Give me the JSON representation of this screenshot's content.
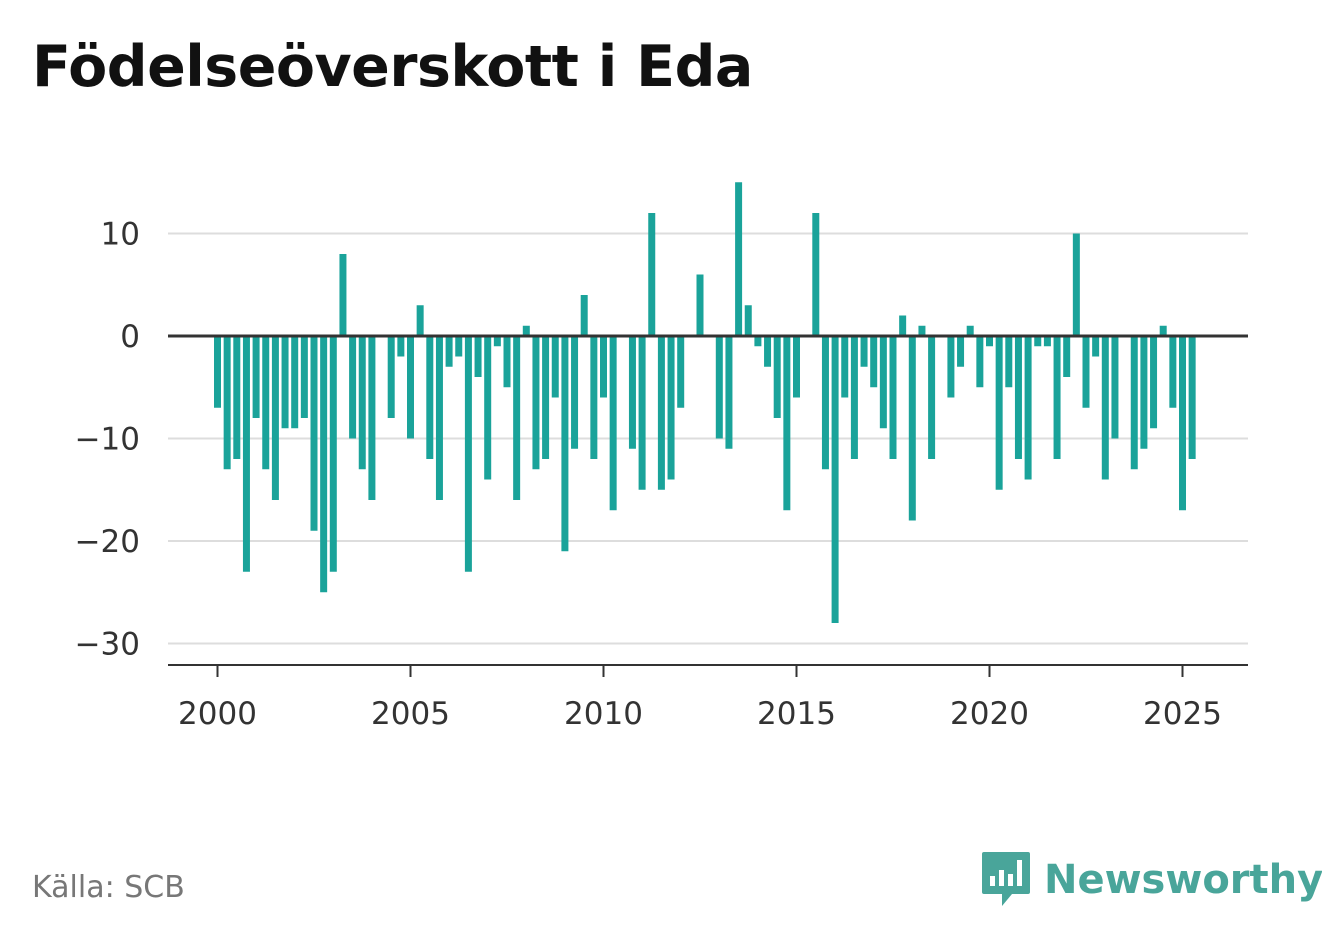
{
  "title": "Födelseöverskott i Eda",
  "source": "Källa: SCB",
  "brand": {
    "name": "Newsworthy",
    "icon": "newsworthy-logo-icon",
    "color": "#49a59a"
  },
  "colors": {
    "bar": "#1aa39a",
    "zero_line": "#333333",
    "grid": "#dddddd",
    "axis": "#333333"
  },
  "chart_data": {
    "type": "bar",
    "title": "Födelseöverskott i Eda",
    "xlabel": "",
    "ylabel": "",
    "x_unit": "quarter",
    "x_start": "2000Q1",
    "x_ticks": [
      "2000",
      "2005",
      "2010",
      "2015",
      "2020",
      "2025"
    ],
    "y_ticks": [
      10,
      0,
      -10,
      -20,
      -30
    ],
    "y_tick_labels": [
      "10",
      "0",
      "−10",
      "−20",
      "−30"
    ],
    "ylim": [
      -32,
      16
    ],
    "grid": true,
    "series": [
      {
        "values": [
          -7,
          -13,
          -12,
          -23,
          -8,
          -13,
          -16,
          -9,
          -9,
          -8,
          -19,
          -25,
          -23,
          8,
          -10,
          -13,
          -16,
          0,
          -8,
          -2,
          -10,
          3,
          -12,
          -16,
          -3,
          -2,
          -23,
          -4,
          -14,
          -1,
          -5,
          -16,
          1,
          -13,
          -12,
          -6,
          -21,
          -11,
          4,
          -12,
          -6,
          -17,
          0,
          -11,
          -15,
          12,
          -15,
          -14,
          -7,
          0,
          6,
          0,
          -10,
          -11,
          15,
          3,
          -1,
          -3,
          -8,
          -17,
          -6,
          0,
          12,
          -13,
          -28,
          -6,
          -12,
          -3,
          -5,
          -9,
          -12,
          2,
          -18,
          1,
          -12,
          0,
          -6,
          -3,
          1,
          -5,
          -1,
          -15,
          -5,
          -12,
          -14,
          -1,
          -1,
          -12,
          -4,
          10,
          -7,
          -2,
          -14,
          -10,
          0,
          -13,
          -11,
          -9,
          1,
          -7,
          -17,
          -12
        ]
      }
    ]
  }
}
